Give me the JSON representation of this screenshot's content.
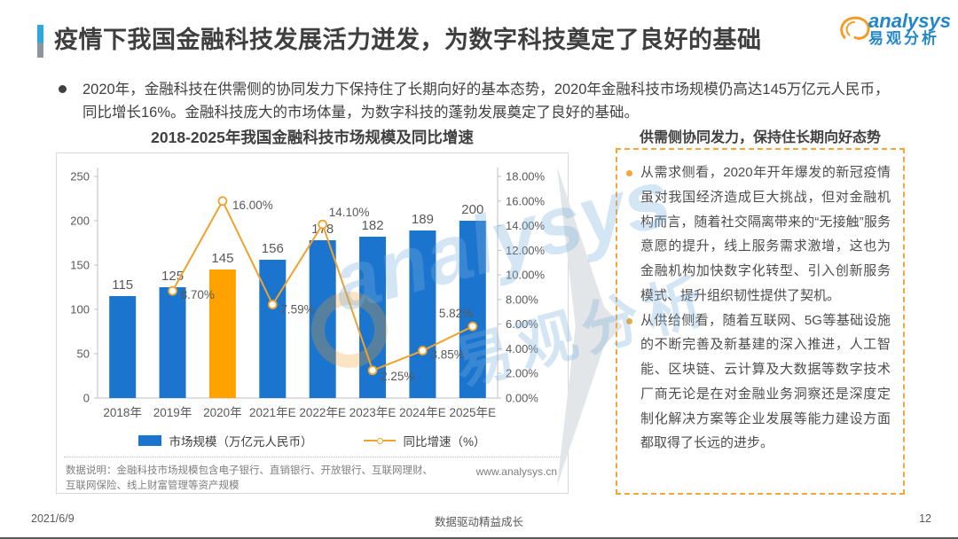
{
  "slide": {
    "title": "疫情下我国金融科技发展活力迸发，为数字科技奠定了良好的基础",
    "summary": "2020年，金融科技在供需侧的协同发力下保持住了长期向好的基本态势，2020年金融科技市场规模仍高达145万亿元人民币，同比增长16%。金融科技庞大的市场体量，为数字科技的蓬勃发展奠定了良好的基础。",
    "logo": {
      "brand": "analysys",
      "brand_cn": "易观分析"
    },
    "footer": {
      "date": "2021/6/9",
      "slogan": "数据驱动精益成长",
      "page": "12"
    }
  },
  "chart_data": {
    "type": "bar",
    "title": "2018-2025年我国金融科技市场规模及同比增速",
    "categories": [
      "2018年",
      "2019年",
      "2020年",
      "2021年E",
      "2022年E",
      "2023年E",
      "2024年E",
      "2025年E"
    ],
    "series": [
      {
        "name": "市场规模（万亿元人民币）",
        "type": "bar",
        "values": [
          115,
          125,
          145,
          156,
          178,
          182,
          189,
          200
        ],
        "color": "#1B75CF",
        "highlight_index": 2,
        "highlight_color": "#FFA200"
      },
      {
        "name": "同比增速（%）",
        "type": "line",
        "values": [
          null,
          8.7,
          16.0,
          7.59,
          14.1,
          2.25,
          3.85,
          5.82
        ],
        "labels": [
          "",
          "8.70%",
          "16.00%",
          "7.59%",
          "14.10%",
          "2.25%",
          "3.85%",
          "5.82%"
        ],
        "color": "#EFA22C"
      }
    ],
    "left_axis": {
      "max": 250,
      "step": 50,
      "ticks": [
        "250",
        "200",
        "150",
        "100",
        "50",
        "0"
      ]
    },
    "right_axis": {
      "max": 18,
      "step": 2,
      "ticks": [
        "18.00%",
        "16.00%",
        "14.00%",
        "12.00%",
        "10.00%",
        "8.00%",
        "6.00%",
        "4.00%",
        "2.00%",
        "0.00%"
      ]
    },
    "legend": [
      "市场规模（万亿元人民币）",
      "同比增速（%）"
    ],
    "legend_position": "bottom",
    "grid": false,
    "ylim_left": [
      0,
      250
    ],
    "ylim_right": [
      0,
      18
    ],
    "note": "数据说明：金融科技市场规模包含电子银行、直销银行、开放银行、互联网理财、互联网保险、线上财富管理等资产规模",
    "source_url": "www.analysys.cn"
  },
  "panel": {
    "header": "供需侧协同发力，保持住长期向好态势",
    "bullets": [
      "从需求侧看，2020年开年爆发的新冠疫情虽对我国经济造成巨大挑战，但对金融机构而言，随着社交隔离带来的“无接触”服务意愿的提升，线上服务需求激增，这也为金融机构加快数字化转型、引入创新服务模式、提升组织韧性提供了契机。",
      "从供给侧看，随着互联网、5G等基础设施的不断完善及新基建的深入推进，人工智能、区块链、云计算及大数据等数字技术厂商无论是在对金融业务洞察还是深度定制化解决方案等企业发展等能力建设方面都取得了长远的进步。"
    ]
  },
  "watermark": {
    "brand": "analysys",
    "brand_cn": "易观分析"
  }
}
